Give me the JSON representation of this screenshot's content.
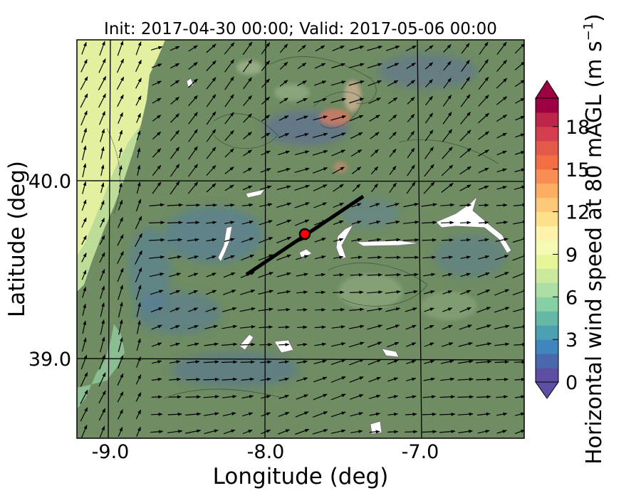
{
  "title": "Init: 2017-04-30 00:00; Valid: 2017-05-06 00:00",
  "xlabel": "Longitude (deg)",
  "ylabel": "Latitude (deg)",
  "x_ticks": [
    "-9.0",
    "-8.0",
    "-7.0"
  ],
  "y_ticks": [
    "40.0",
    "39.0"
  ],
  "colorbar": {
    "label": "Horizontal wind speed at 80 mAGL (m s",
    "label_sup": "−1",
    "label_end": ")",
    "ticks": [
      "0",
      "3",
      "6",
      "9",
      "12",
      "15",
      "18"
    ],
    "range": [
      0,
      20
    ],
    "colors": [
      "#5e4fa2",
      "#4a69ad",
      "#3f86bc",
      "#4ba0b1",
      "#65b8a6",
      "#87cfa4",
      "#abdda4",
      "#cbe99d",
      "#e6f598",
      "#f4fab2",
      "#fff3ac",
      "#fee08b",
      "#fdc877",
      "#fdaf61",
      "#f88e53",
      "#f46d43",
      "#e45a4a",
      "#d53e4f",
      "#be254a",
      "#9e0142"
    ]
  },
  "map": {
    "x_range": [
      -9.25,
      -6.35
    ],
    "y_range": [
      38.55,
      40.8
    ],
    "grid_lons": [
      -9.0,
      -8.0,
      -7.0
    ],
    "grid_lats": [
      40.0,
      39.0
    ],
    "transect": {
      "from": [
        -8.12,
        39.47
      ],
      "to": [
        -7.38,
        39.92
      ]
    },
    "site_marker": {
      "lon": -7.75,
      "lat": 39.7,
      "color": "#ff0000"
    },
    "ocean_color": "#e2f0a0",
    "land_color": "#6f8c62"
  }
}
